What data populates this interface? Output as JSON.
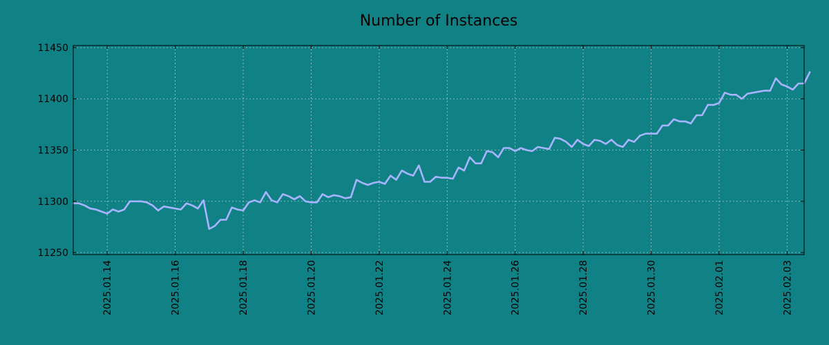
{
  "chart_data": {
    "type": "line",
    "title": "Number of Instances",
    "xlabel": "",
    "ylabel": "",
    "grid": true,
    "legend": "none",
    "x_start": "2025-01-13",
    "x_step_hours": 4,
    "x_range": [
      "2025-01-13",
      "2025-02-03 12:00"
    ],
    "ylim": [
      11248,
      11452
    ],
    "yticks": [
      11250,
      11300,
      11350,
      11400,
      11450
    ],
    "ytick_labels": [
      "11250",
      "11300",
      "11350",
      "11400",
      "11450"
    ],
    "xticks": [
      "2025-01-14",
      "2025-01-16",
      "2025-01-18",
      "2025-01-20",
      "2025-01-22",
      "2025-01-24",
      "2025-01-26",
      "2025-01-28",
      "2025-01-30",
      "2025-02-01",
      "2025-02-03"
    ],
    "xtick_labels": [
      "2025.01.14",
      "2025.01.16",
      "2025.01.18",
      "2025.01.20",
      "2025.01.22",
      "2025.01.24",
      "2025.01.26",
      "2025.01.28",
      "2025.01.30",
      "2025.02.01",
      "2025.02.03"
    ],
    "series": [
      {
        "name": "",
        "color": "#a8b4ff",
        "values": [
          11298,
          11298,
          11296,
          11293,
          11292,
          11290,
          11288,
          11292,
          11290,
          11292,
          11300,
          11300,
          11300,
          11299,
          11296,
          11291,
          11295,
          11294,
          11293,
          11292,
          11298,
          11296,
          11293,
          11301,
          11273,
          11276,
          11282,
          11282,
          11294,
          11292,
          11291,
          11299,
          11301,
          11299,
          11309,
          11301,
          11299,
          11307,
          11305,
          11302,
          11305,
          11300,
          11299,
          11299,
          11307,
          11304,
          11306,
          11305,
          11303,
          11304,
          11321,
          11318,
          11316,
          11318,
          11319,
          11317,
          11325,
          11321,
          11330,
          11327,
          11325,
          11335,
          11319,
          11319,
          11324,
          11323,
          11323,
          11322,
          11333,
          11330,
          11343,
          11337,
          11337,
          11349,
          11348,
          11343,
          11352,
          11352,
          11349,
          11352,
          11350,
          11349,
          11353,
          11352,
          11351,
          11362,
          11361,
          11358,
          11353,
          11360,
          11356,
          11354,
          11360,
          11359,
          11356,
          11360,
          11355,
          11353,
          11360,
          11358,
          11364,
          11366,
          11366,
          11366,
          11374,
          11374,
          11380,
          11378,
          11378,
          11376,
          11384,
          11384,
          11394,
          11394,
          11396,
          11406,
          11404,
          11404,
          11400,
          11405,
          11406,
          11407,
          11408,
          11408,
          11420,
          11414,
          11412,
          11409,
          11415,
          11415,
          11426
        ]
      }
    ]
  }
}
